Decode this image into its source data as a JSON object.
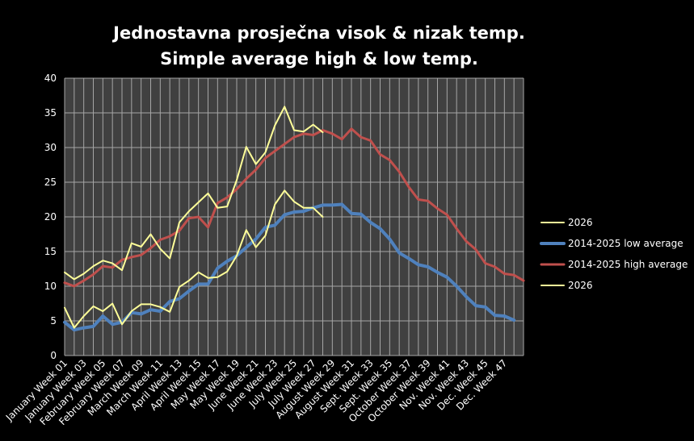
{
  "chart_data": {
    "type": "line",
    "title": "Jednostavna prosječna visok & nizak temp.",
    "subtitle": "Simple average high & low temp.",
    "xlabel": "",
    "ylabel": "",
    "ylim": [
      0,
      40
    ],
    "y_ticks": [
      "0",
      "5",
      "10",
      "15",
      "20",
      "25",
      "30",
      "35",
      "40"
    ],
    "grid": "vertical and horizontal",
    "legend_position": "right",
    "x_tick_labels": [
      "January Week 01",
      "January Week 03",
      "February Week 05",
      "February Week 07",
      "March Week 09",
      "March Week 11",
      "April Week 13",
      "April Week 15",
      "May Week 17",
      "May Week 19",
      "June Week 21",
      "June Week 23",
      "July Week 25",
      "July Week 27",
      "August Week 29",
      "August Week 31",
      "Sept. Week 33",
      "Sept. Week 35",
      "October Week 37",
      "October Week 39",
      "Nov. Week 41",
      "Nov. Week 43",
      "Dec. Week 45",
      "Dec. Week 47"
    ],
    "x_count": 49,
    "colors": {
      "background": "#000000",
      "plot_area": "#404040",
      "grid": "#a6a6a6",
      "text": "#ffffff"
    },
    "legend": [
      "2026",
      "2014-2025 low average",
      "2014-2025 high average",
      "2026"
    ],
    "series": [
      {
        "name": "2014-2025 high average",
        "color": "#c0504d",
        "width": 3,
        "values": [
          10.5,
          10.0,
          10.8,
          11.7,
          12.9,
          12.7,
          13.8,
          14.2,
          14.5,
          15.5,
          16.7,
          17.2,
          18.0,
          19.8,
          20.0,
          18.5,
          22.0,
          22.8,
          24.0,
          25.5,
          26.8,
          28.5,
          29.5,
          30.5,
          31.5,
          32.0,
          31.8,
          32.5,
          32.0,
          31.2,
          32.7,
          31.5,
          31.0,
          29.0,
          28.2,
          26.5,
          24.3,
          22.5,
          22.3,
          21.2,
          20.3,
          18.3,
          16.5,
          15.3,
          13.3,
          12.8,
          11.8,
          11.6,
          10.8
        ]
      },
      {
        "name": "2014-2025 low average",
        "color": "#4f81bd",
        "width": 4,
        "values": [
          4.8,
          3.7,
          4.0,
          4.2,
          5.7,
          4.5,
          4.8,
          6.2,
          6.0,
          6.6,
          6.4,
          7.8,
          8.2,
          9.3,
          10.3,
          10.3,
          12.6,
          13.6,
          14.4,
          15.6,
          16.8,
          18.5,
          18.8,
          20.3,
          20.7,
          20.8,
          21.3,
          21.7,
          21.7,
          21.8,
          20.5,
          20.4,
          19.2,
          18.3,
          16.8,
          14.8,
          14.0,
          13.1,
          12.8,
          12.0,
          11.3,
          10.0,
          8.5,
          7.2,
          7.0,
          5.8,
          5.7,
          5.1,
          null
        ]
      },
      {
        "name": "2026",
        "color": "#ffff99",
        "width": 2,
        "values": [
          12.0,
          11.0,
          11.8,
          12.9,
          13.7,
          13.3,
          12.3,
          16.2,
          15.7,
          17.5,
          15.4,
          14.0,
          19.2,
          20.8,
          22.1,
          23.4,
          21.3,
          21.5,
          25.3,
          30.1,
          27.6,
          29.3,
          33.2,
          35.9,
          32.5,
          32.3,
          33.3,
          32.2,
          null,
          null,
          null,
          null,
          null,
          null,
          null,
          null,
          null,
          null,
          null,
          null,
          null,
          null,
          null,
          null,
          null,
          null,
          null,
          null,
          null
        ]
      },
      {
        "name": "2026",
        "color": "#ffff99",
        "width": 2,
        "values": [
          6.9,
          4.0,
          5.7,
          7.1,
          6.4,
          7.5,
          4.5,
          6.4,
          7.4,
          7.4,
          7.0,
          6.3,
          9.9,
          10.8,
          12.0,
          11.2,
          11.3,
          12.1,
          14.4,
          18.1,
          15.6,
          17.3,
          21.8,
          23.8,
          22.2,
          21.3,
          21.3,
          20.0,
          null,
          null,
          null,
          null,
          null,
          null,
          null,
          null,
          null,
          null,
          null,
          null,
          null,
          null,
          null,
          null,
          null,
          null,
          null,
          null,
          null
        ]
      }
    ]
  }
}
